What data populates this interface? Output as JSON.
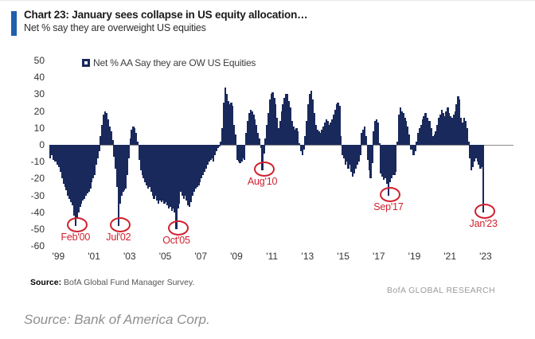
{
  "header": {
    "title": "Chart 23: January sees collapse in US equity allocation…",
    "subtitle": "Net % say they are overweight US equities"
  },
  "legend": {
    "label": "Net % AA Say they are OW US Equities"
  },
  "chart_data": {
    "type": "bar",
    "title": "Chart 23: January sees collapse in US equity allocation…",
    "subtitle": "Net % say they are overweight US equities",
    "series_name": "Net % AA Say they are OW US Equities",
    "unit": "net %",
    "frequency": "monthly",
    "start_month": "1998-09",
    "end_month": "2023-01",
    "ylim": [
      -60,
      50
    ],
    "yticks": [
      50,
      40,
      30,
      20,
      10,
      0,
      -10,
      -20,
      -30,
      -40,
      -50,
      -60
    ],
    "xticks": [
      "'99",
      "'01",
      "'03",
      "'05",
      "'07",
      "'09",
      "'11",
      "'13",
      "'15",
      "'17",
      "'19",
      "'21",
      "'23"
    ],
    "grid": false,
    "legend_position": "top",
    "bar_color": "#19295c",
    "annotation_color": "#d0202e",
    "values": [
      -8,
      -6,
      -9,
      -10,
      -10,
      -12,
      -13,
      -16,
      -20,
      -23,
      -25,
      -27,
      -30,
      -32,
      -34,
      -36,
      -42,
      -48,
      -44,
      -40,
      -37,
      -35,
      -33,
      -32,
      -30,
      -29,
      -28,
      -26,
      -22,
      -20,
      -18,
      -12,
      -8,
      -4,
      5,
      12,
      18,
      20,
      19,
      15,
      11,
      8,
      3,
      -7,
      -14,
      -25,
      -48,
      -35,
      -30,
      -28,
      -27,
      -26,
      -18,
      -8,
      4,
      9,
      11,
      10,
      7,
      2,
      -9,
      -15,
      -18,
      -20,
      -22,
      -24,
      -26,
      -25,
      -28,
      -30,
      -32,
      -30,
      -33,
      -35,
      -33,
      -34,
      -33,
      -35,
      -34,
      -36,
      -38,
      -37,
      -39,
      -38,
      -40,
      -50,
      -38,
      -35,
      -28,
      -30,
      -32,
      -30,
      -33,
      -36,
      -37,
      -34,
      -30,
      -28,
      -26,
      -25,
      -24,
      -22,
      -20,
      -18,
      -16,
      -14,
      -12,
      -10,
      -9,
      -8,
      -10,
      -6,
      -4,
      -2,
      -1,
      2,
      10,
      25,
      34,
      30,
      26,
      24,
      25,
      23,
      12,
      6,
      -9,
      -10,
      -11,
      -10,
      -8,
      -9,
      7,
      14,
      19,
      21,
      20,
      18,
      15,
      12,
      7,
      4,
      -2,
      -15,
      -5,
      4,
      12,
      19,
      27,
      30,
      31,
      28,
      24,
      16,
      10,
      14,
      20,
      24,
      28,
      30,
      30,
      26,
      22,
      14,
      11,
      9,
      10,
      8,
      1,
      -4,
      -6,
      -3,
      5,
      14,
      24,
      30,
      32,
      27,
      19,
      12,
      9,
      8,
      7,
      9,
      11,
      13,
      15,
      14,
      12,
      13,
      15,
      18,
      21,
      24,
      25,
      23,
      5,
      -6,
      -8,
      -12,
      -10,
      -14,
      -12,
      -16,
      -19,
      -17,
      -14,
      -12,
      -10,
      -6,
      7,
      9,
      11,
      5,
      -9,
      -15,
      -20,
      -11,
      8,
      14,
      15,
      13,
      1,
      -17,
      -19,
      -21,
      -20,
      -23,
      -30,
      -22,
      -20,
      -18,
      -18,
      -16,
      2,
      18,
      22,
      20,
      19,
      16,
      14,
      11,
      6,
      -3,
      -3,
      -6,
      -4,
      2,
      7,
      10,
      12,
      15,
      17,
      19,
      16,
      14,
      14,
      10,
      5,
      6,
      8,
      12,
      16,
      18,
      21,
      19,
      17,
      20,
      22,
      19,
      17,
      16,
      18,
      20,
      24,
      29,
      27,
      16,
      13,
      16,
      14,
      10,
      2,
      -8,
      -15,
      -13,
      -10,
      -8,
      -10,
      -12,
      -14,
      -13,
      -40
    ],
    "annotations": [
      {
        "label": "Feb'00",
        "month": "2000-02",
        "value": -48
      },
      {
        "label": "Jul'02",
        "month": "2002-07",
        "value": -48
      },
      {
        "label": "Oct'05",
        "month": "2005-10",
        "value": -50
      },
      {
        "label": "Aug'10",
        "month": "2010-08",
        "value": -15
      },
      {
        "label": "Sep'17",
        "month": "2017-09",
        "value": -30
      },
      {
        "label": "Jan'23",
        "month": "2023-01",
        "value": -40
      }
    ]
  },
  "footer": {
    "source_label": "Source:",
    "source_text": " BofA Global Fund Manager Survey.",
    "brand": "BofA GLOBAL RESEARCH"
  },
  "caption": "Source: Bank of America Corp."
}
